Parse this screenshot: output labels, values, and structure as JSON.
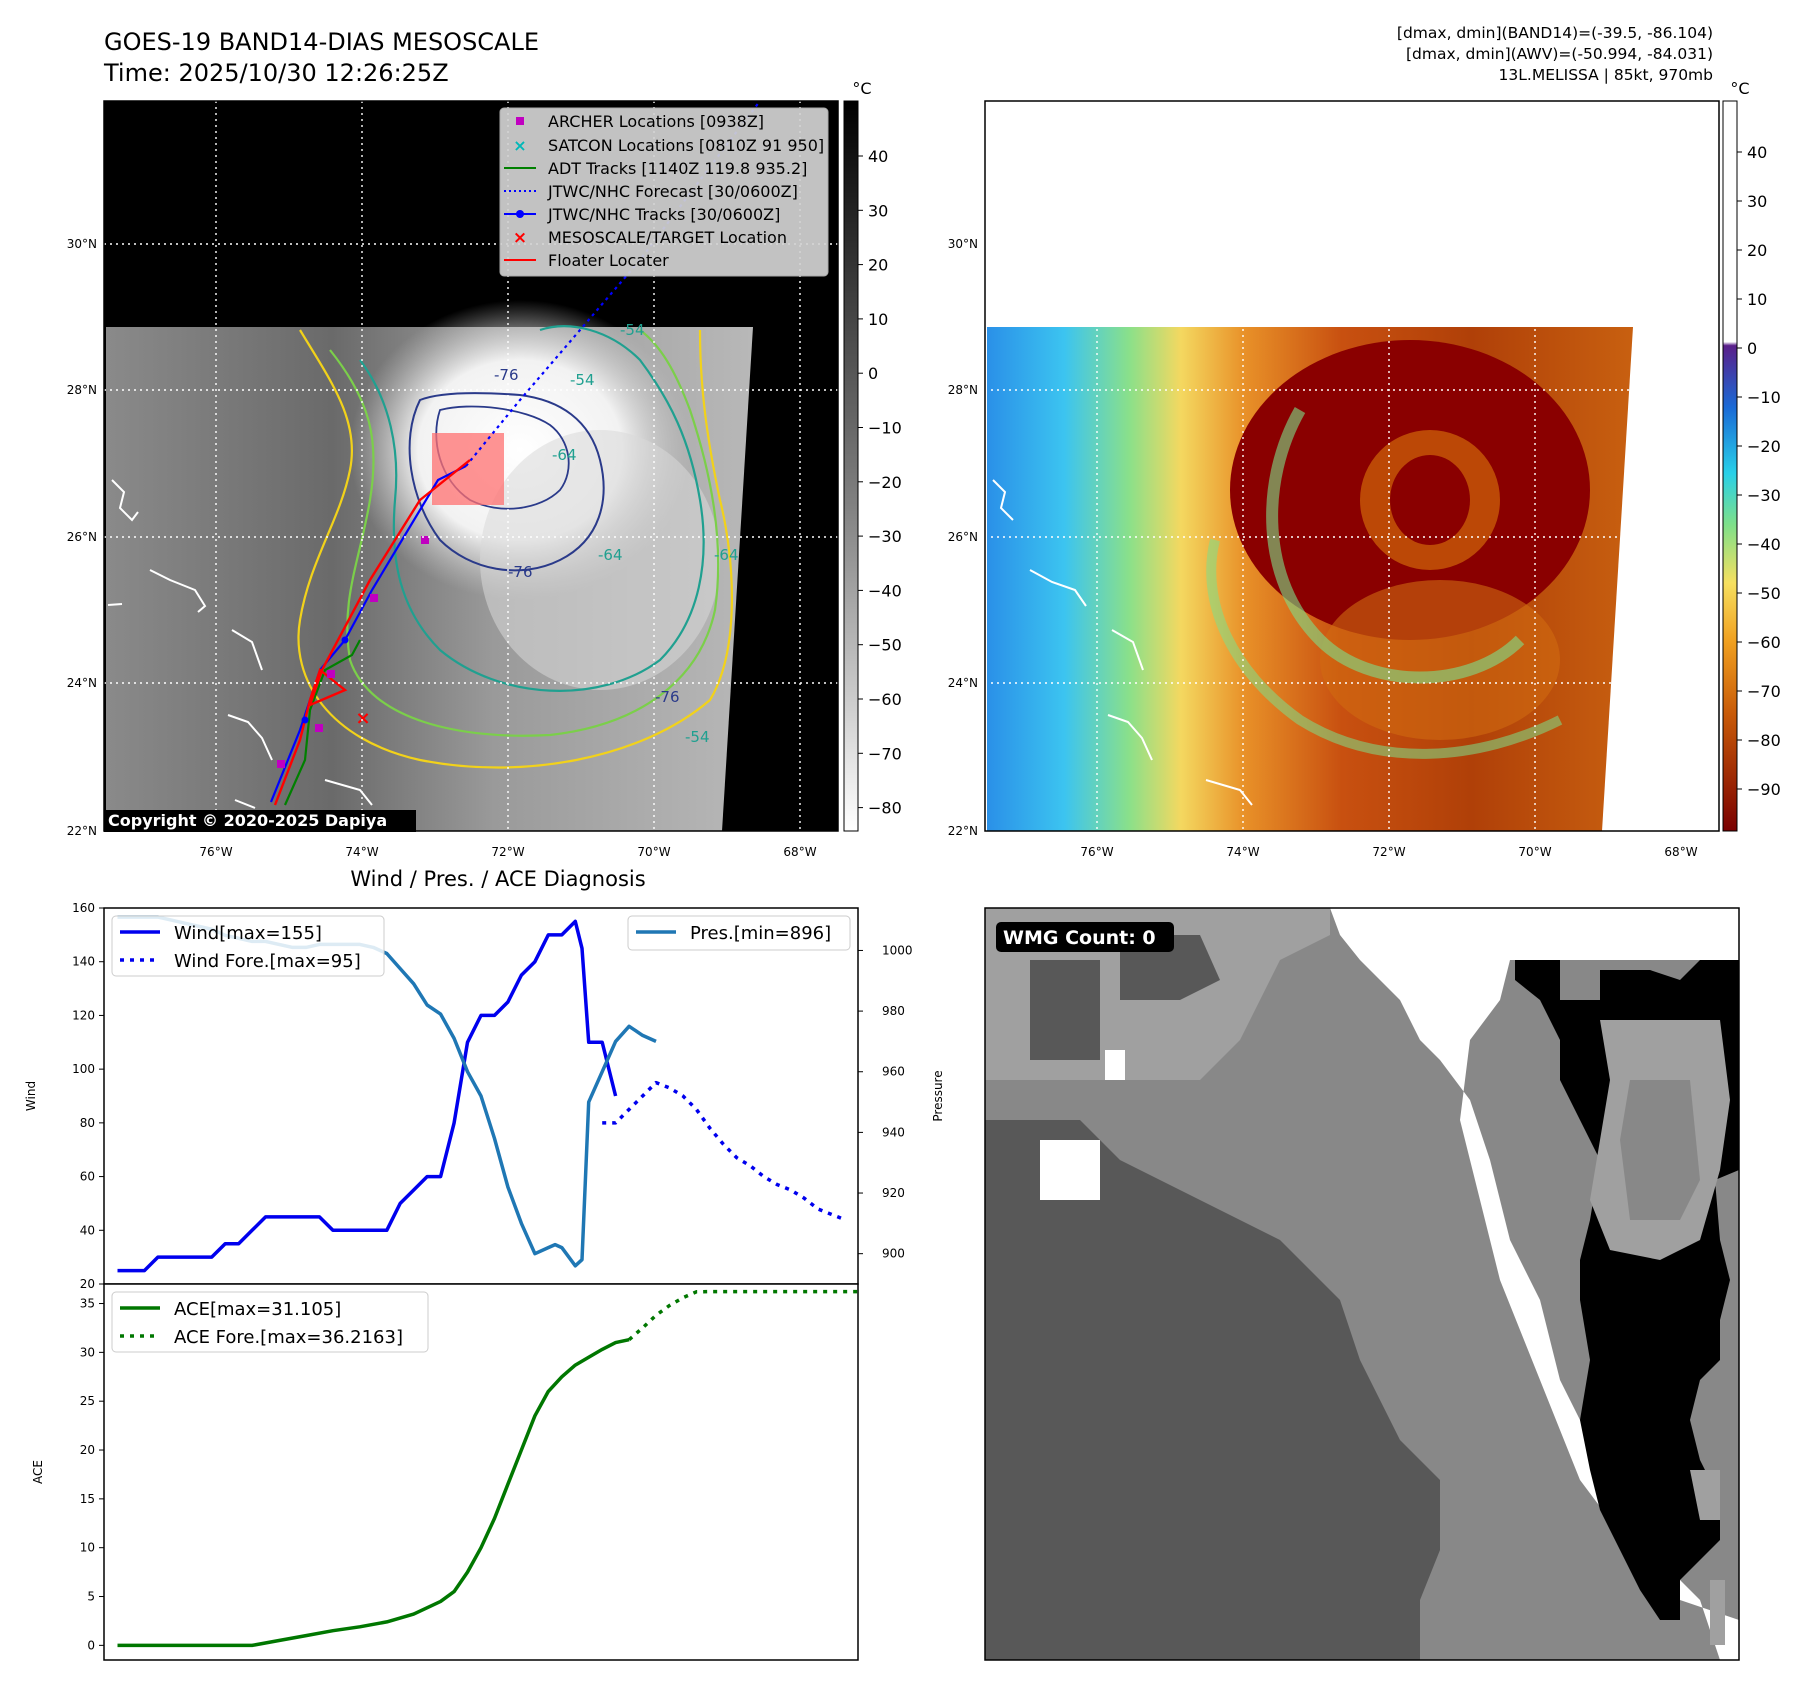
{
  "header": {
    "title_line1": "GOES-19 BAND14-DIAS MESOSCALE",
    "title_line2": "Time: 2025/10/30 12:26:25Z",
    "info_line1": "[dmax, dmin](BAND14)=(-39.5, -86.104)",
    "info_line2": "[dmax, dmin](AWV)=(-50.994, -84.031)",
    "info_line3": "13L.MELISSA | 85kt, 970mb"
  },
  "map_panel": {
    "copyright": "Copyright © 2020-2025 Dapiya",
    "lat_labels": [
      "30°N",
      "28°N",
      "26°N",
      "24°N",
      "22°N"
    ],
    "lon_labels": [
      "76°W",
      "74°W",
      "72°W",
      "70°W",
      "68°W"
    ],
    "contour_labels": [
      "-76",
      "-64",
      "-54",
      "-76",
      "-64",
      "-54",
      "-76",
      "-54",
      "-64"
    ],
    "legend": [
      {
        "label": "ARCHER Locations [0938Z]",
        "color": "#c000c0",
        "marker": "square"
      },
      {
        "label": "SATCON Locations [0810Z 91 950]",
        "color": "#00b8b8",
        "marker": "x"
      },
      {
        "label": "ADT Tracks [1140Z 119.8 935.2]",
        "color": "#008000",
        "marker": "line"
      },
      {
        "label": "JTWC/NHC Forecast [30/0600Z]",
        "color": "#0000ff",
        "marker": "dotted"
      },
      {
        "label": "JTWC/NHC Tracks [30/0600Z]",
        "color": "#0000ff",
        "marker": "line-dot"
      },
      {
        "label": "MESOSCALE/TARGET Location",
        "color": "#ff0000",
        "marker": "x"
      },
      {
        "label": "Floater Locater",
        "color": "#ff0000",
        "marker": "line"
      }
    ],
    "colorbar": {
      "unit": "°C",
      "ticks": [
        "40",
        "30",
        "20",
        "10",
        "0",
        "−10",
        "−20",
        "−30",
        "−40",
        "−50",
        "−60",
        "−70",
        "−80"
      ]
    }
  },
  "awv_panel": {
    "lat_labels": [
      "30°N",
      "28°N",
      "26°N",
      "24°N",
      "22°N"
    ],
    "lon_labels": [
      "76°W",
      "74°W",
      "72°W",
      "70°W",
      "68°W"
    ],
    "colorbar": {
      "unit": "°C",
      "ticks": [
        "40",
        "30",
        "20",
        "10",
        "0",
        "−10",
        "−20",
        "−30",
        "−40",
        "−50",
        "−60",
        "−70",
        "−80",
        "−90"
      ]
    }
  },
  "wmg_panel": {
    "label": "WMG Count: 0",
    "colors": {
      "white": "#ffffff",
      "light": "#a0a0a0",
      "mid": "#888888",
      "dark": "#585858",
      "black": "#000000"
    }
  },
  "chart_data": [
    {
      "type": "line",
      "title": "Wind / Pres. / ACE Diagnosis",
      "ylabel": "Wind",
      "y2label": "Pressure",
      "ylim": [
        20,
        160
      ],
      "y2lim": [
        890,
        1014
      ],
      "yticks": [
        20,
        40,
        60,
        80,
        100,
        120,
        140,
        160
      ],
      "y2ticks": [
        900,
        920,
        940,
        960,
        980,
        1000
      ],
      "xlim": [
        -2,
        110
      ],
      "legend_left": "upper-left",
      "legend_right": "upper-right",
      "series": [
        {
          "name": "Wind[max=155]",
          "axis": "left",
          "color": "#0000ee",
          "style": "solid",
          "x": [
            0,
            4,
            6,
            8,
            10,
            12,
            14,
            16,
            18,
            20,
            22,
            24,
            26,
            28,
            30,
            32,
            34,
            36,
            38,
            40,
            42,
            44,
            46,
            48,
            50,
            52,
            54,
            56,
            58,
            60,
            62,
            64,
            65,
            66,
            68,
            69,
            70,
            72,
            74
          ],
          "y": [
            25,
            25,
            30,
            30,
            30,
            30,
            30,
            35,
            35,
            40,
            45,
            45,
            45,
            45,
            45,
            40,
            40,
            40,
            40,
            40,
            50,
            55,
            60,
            60,
            80,
            110,
            120,
            120,
            125,
            135,
            140,
            150,
            150,
            150,
            155,
            145,
            110,
            110,
            90
          ]
        },
        {
          "name": "Wind Fore.[max=95]",
          "axis": "left",
          "color": "#0000ee",
          "style": "dotted",
          "x": [
            72,
            74,
            76,
            78,
            80,
            82,
            84,
            86,
            88,
            90,
            92,
            94,
            96,
            98,
            100,
            102,
            104,
            106,
            108
          ],
          "y": [
            80,
            80,
            85,
            90,
            95,
            93,
            90,
            85,
            78,
            72,
            67,
            64,
            60,
            57,
            55,
            52,
            48,
            46,
            44
          ]
        },
        {
          "name": "Pres.[min=896]",
          "axis": "right",
          "color": "#1f77b4",
          "style": "solid",
          "x": [
            0,
            4,
            6,
            8,
            10,
            12,
            14,
            16,
            18,
            20,
            22,
            24,
            26,
            28,
            30,
            32,
            34,
            36,
            38,
            40,
            42,
            44,
            46,
            48,
            50,
            52,
            54,
            56,
            58,
            60,
            62,
            64,
            65,
            66,
            68,
            69,
            70,
            72,
            74,
            76,
            78,
            80
          ],
          "y": [
            1011,
            1011,
            1011,
            1010,
            1009,
            1008,
            1007,
            1005,
            1004,
            1003,
            1003,
            1002,
            1001,
            1001,
            1002,
            1002,
            1002,
            1002,
            1001,
            999,
            994,
            989,
            982,
            979,
            971,
            960,
            952,
            938,
            922,
            910,
            900,
            902,
            903,
            902,
            896,
            898,
            950,
            960,
            970,
            975,
            972,
            970
          ]
        }
      ]
    },
    {
      "type": "line",
      "ylabel": "ACE",
      "ylim": [
        -1.5,
        37
      ],
      "yticks": [
        0,
        5,
        10,
        15,
        20,
        25,
        30,
        35
      ],
      "xlim": [
        -2,
        110
      ],
      "legend": "upper-left",
      "series": [
        {
          "name": "ACE[max=31.105]",
          "color": "#007700",
          "style": "solid",
          "x": [
            0,
            4,
            8,
            12,
            16,
            20,
            24,
            28,
            32,
            36,
            40,
            44,
            48,
            50,
            52,
            54,
            56,
            58,
            60,
            62,
            64,
            66,
            68,
            70,
            72,
            74,
            76
          ],
          "y": [
            0,
            0,
            0,
            0,
            0,
            0,
            0.5,
            1,
            1.5,
            1.9,
            2.4,
            3.2,
            4.5,
            5.5,
            7.5,
            10,
            13,
            16.5,
            20,
            23.5,
            26,
            27.5,
            28.7,
            29.5,
            30.3,
            31,
            31.3
          ]
        },
        {
          "name": "ACE Fore.[max=36.2163]",
          "color": "#007700",
          "style": "dotted",
          "x": [
            76,
            78,
            80,
            82,
            84,
            86,
            88,
            90,
            95,
            100,
            105,
            110
          ],
          "y": [
            31.3,
            32.5,
            33.8,
            34.8,
            35.6,
            36.2,
            36.22,
            36.22,
            36.22,
            36.22,
            36.22,
            36.22
          ]
        }
      ]
    }
  ]
}
